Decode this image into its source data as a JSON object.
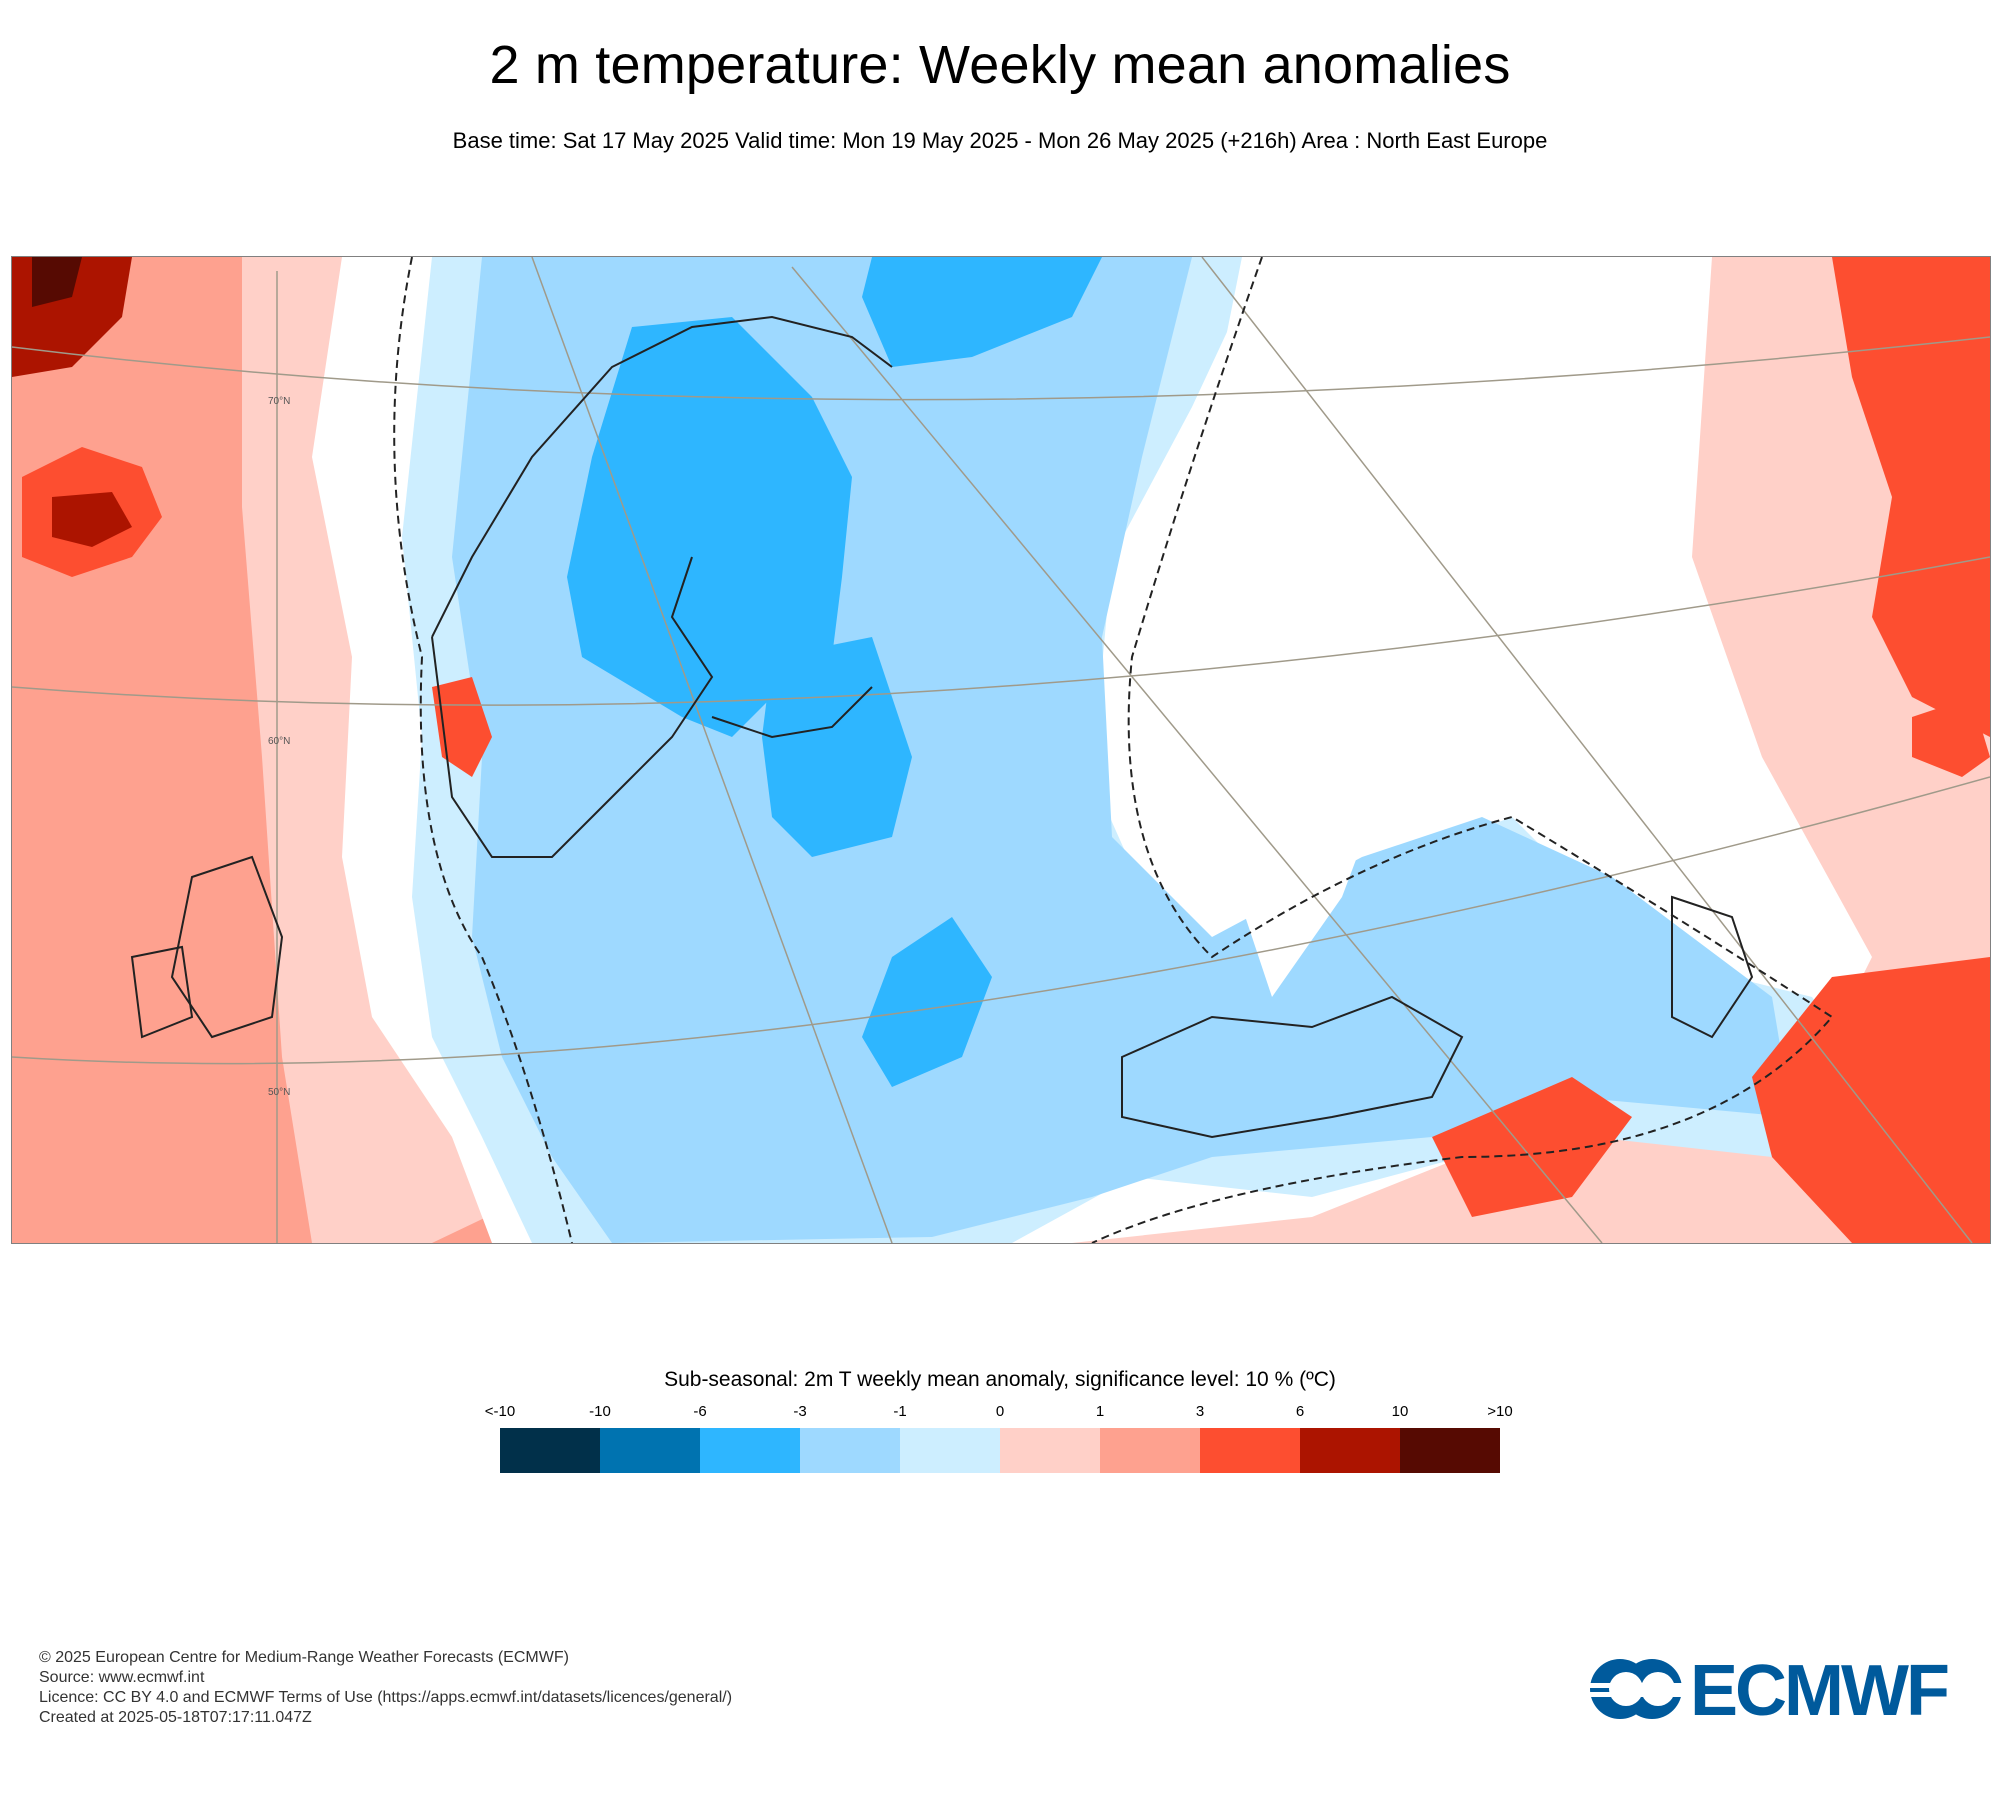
{
  "title": "2 m temperature: Weekly mean anomalies",
  "subtitle": "Base time: Sat 17 May 2025 Valid time: Mon 19 May 2025 - Mon 26 May 2025 (+216h) Area : North East Europe",
  "map": {
    "graticule_labels": [
      "70°N",
      "60°N",
      "50°N"
    ],
    "anomaly_colors": {
      "lt_minus10": "#01304a",
      "minus10_to_minus6": "#0073b0",
      "minus6_to_minus3": "#2eb6ff",
      "minus3_to_minus1": "#9ed9ff",
      "minus1_to_0": "#cdeeff",
      "zero_to_1": "#ffd0c8",
      "1_to_3": "#fea18f",
      "3_to_6": "#fd4e30",
      "6_to_10": "#ac1400",
      "gt_10": "#560a02"
    }
  },
  "legend": {
    "title": "Sub-seasonal: 2m T weekly mean anomaly, significance level: 10 % (ºC)",
    "labels": [
      "<-10",
      "-10",
      "-6",
      "-3",
      "-1",
      "0",
      "1",
      "3",
      "6",
      "10",
      ">10"
    ],
    "colors": [
      "#01304a",
      "#0073b0",
      "#2eb6ff",
      "#9ed9ff",
      "#cdeeff",
      "#ffd0c8",
      "#fea18f",
      "#fd4e30",
      "#ac1400",
      "#560a02"
    ]
  },
  "footer": {
    "copyright": "© 2025 European Centre for Medium-Range Weather Forecasts (ECMWF)",
    "source": "Source: www.ecmwf.int",
    "licence": "Licence: CC BY 4.0 and ECMWF Terms of Use (https://apps.ecmwf.int/datasets/licences/general/)",
    "created": "Created at 2025-05-18T07:17:11.047Z"
  },
  "logo": {
    "text": "ECMWF",
    "color": "#005a9c"
  }
}
